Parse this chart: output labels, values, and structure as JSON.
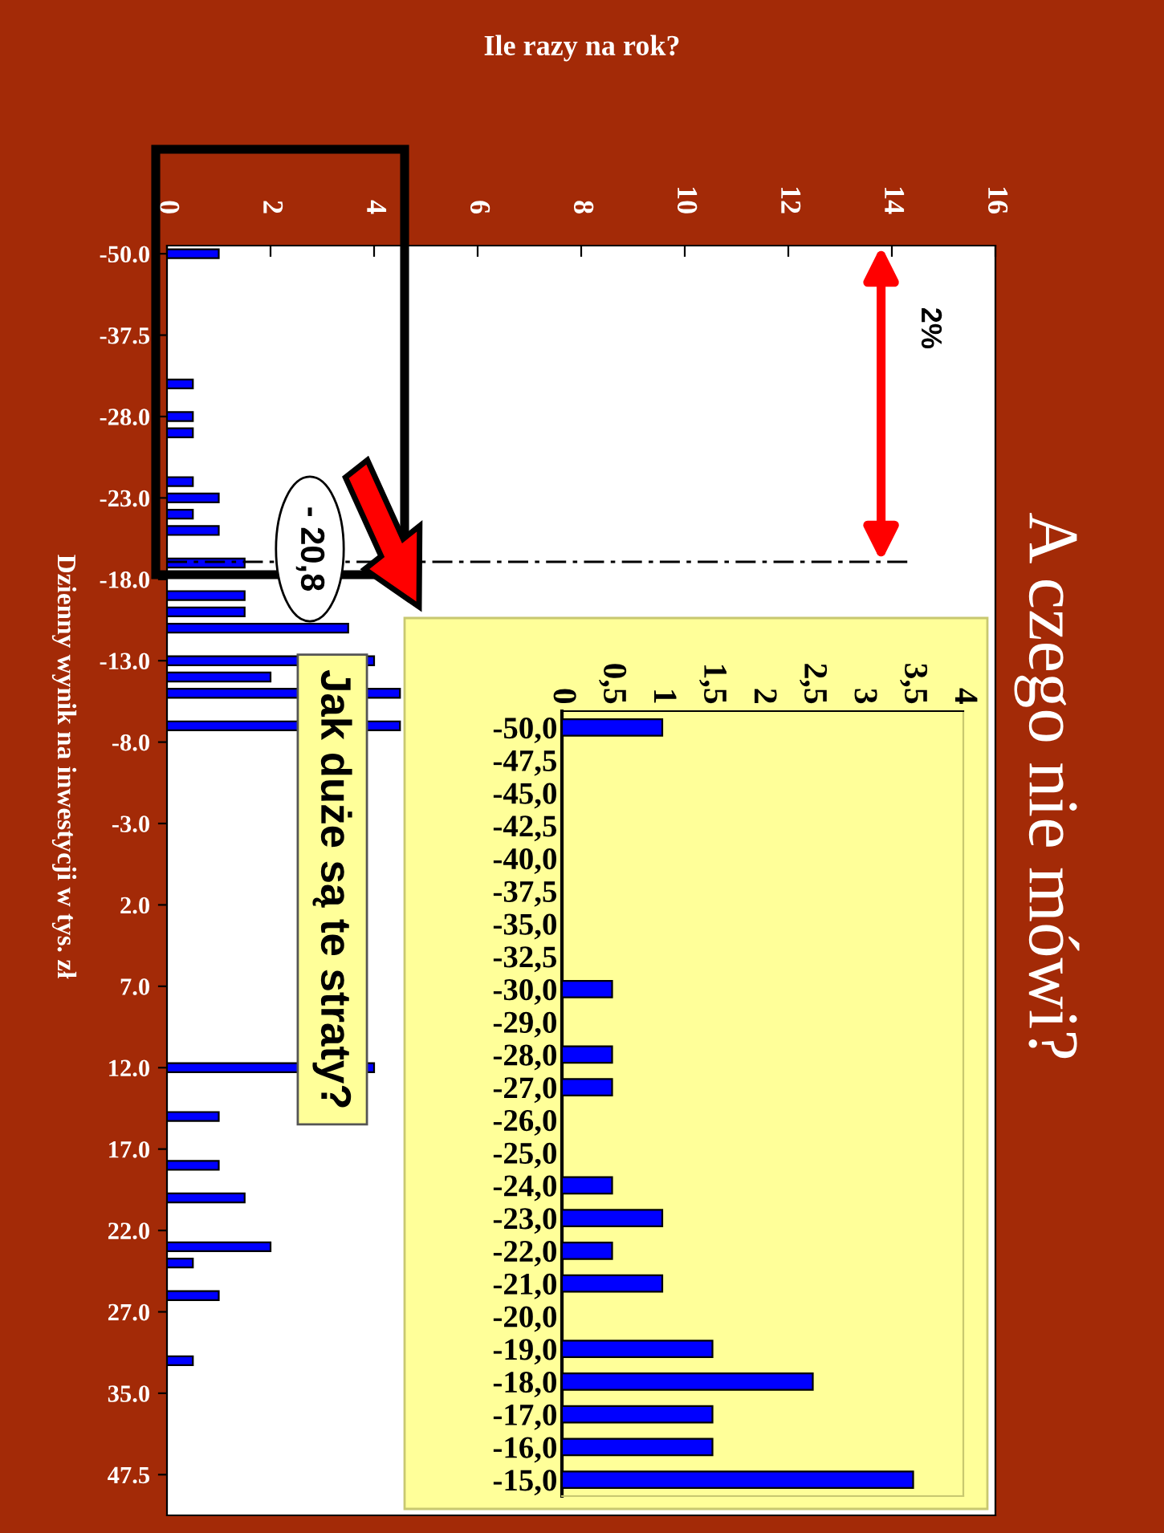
{
  "chart_data": [
    {
      "type": "bar",
      "orientation": "horizontal",
      "title": "A czego nie mówi?",
      "xlabel": "Ile razy na rok?",
      "ylabel": "Dzienny wynik na inwestycji w tys. zł",
      "color": "#0000ff",
      "categories": [
        "-50.0",
        null,
        null,
        null,
        null,
        "-37.5",
        null,
        null,
        null,
        null,
        "-28.0",
        null,
        null,
        null,
        null,
        "-23.0",
        null,
        null,
        null,
        null,
        "-18.0",
        null,
        null,
        null,
        null,
        "-13.0",
        null,
        null,
        null,
        null,
        "-8.0",
        null,
        null,
        null,
        null,
        "-3.0",
        null,
        null,
        null,
        null,
        "2.0",
        null,
        null,
        null,
        null,
        "7.0",
        null,
        null,
        null,
        null,
        "12.0",
        null,
        null,
        null,
        null,
        "17.0",
        null,
        null,
        null,
        null,
        "22.0",
        null,
        null,
        null,
        null,
        "27.0",
        null,
        null,
        null,
        null,
        "35.0",
        null,
        null,
        null,
        null,
        "47.5",
        null,
        null
      ],
      "values": [
        1,
        0,
        0,
        0,
        0,
        0,
        0,
        0,
        0.5,
        0,
        0.5,
        0.5,
        0,
        0,
        0.5,
        1,
        0.5,
        1,
        0,
        1.5,
        null,
        1.5,
        1.5,
        3.5,
        null,
        4,
        2,
        4.5,
        null,
        4.5,
        null,
        null,
        null,
        null,
        null,
        null,
        null,
        null,
        null,
        null,
        null,
        null,
        null,
        null,
        null,
        null,
        null,
        null,
        null,
        null,
        4,
        null,
        null,
        1,
        null,
        null,
        1,
        null,
        1.5,
        null,
        0,
        2,
        0.5,
        0,
        1,
        0,
        0,
        0,
        0.5,
        0,
        0,
        0,
        0,
        0,
        0,
        0,
        0,
        0
      ],
      "xlim": [
        0,
        16
      ],
      "xticks": [
        0,
        2,
        4,
        6,
        8,
        10,
        12,
        14,
        16
      ],
      "annotations": [
        "2%",
        "Jak duże są te straty?",
        "- 20,8"
      ]
    },
    {
      "type": "bar",
      "orientation": "horizontal",
      "color": "#0000ff",
      "categories": [
        "-50,0",
        "-47,5",
        "-45,0",
        "-42,5",
        "-40,0",
        "-37,5",
        "-35,0",
        "-32,5",
        "-30,0",
        "-29,0",
        "-28,0",
        "-27,0",
        "-26,0",
        "-25,0",
        "-24,0",
        "-23,0",
        "-22,0",
        "-21,0",
        "-20,0",
        "-19,0",
        "-18,0",
        "-17,0",
        "-16,0",
        "-15,0"
      ],
      "values": [
        1,
        0,
        0,
        0,
        0,
        0,
        0,
        0,
        0.5,
        0,
        0.5,
        0.5,
        0,
        0,
        0.5,
        1,
        0.5,
        1,
        0,
        1.5,
        2.5,
        1.5,
        1.5,
        3.5
      ],
      "xlim": [
        0,
        4
      ],
      "xticks": [
        0,
        {
          "value": 0.5,
          "label": "0,5"
        },
        1,
        {
          "value": 1.5,
          "label": "1,5"
        },
        2,
        {
          "value": 2.5,
          "label": "2,5"
        },
        3,
        {
          "value": 3.5,
          "label": "3,5"
        },
        4
      ]
    }
  ]
}
